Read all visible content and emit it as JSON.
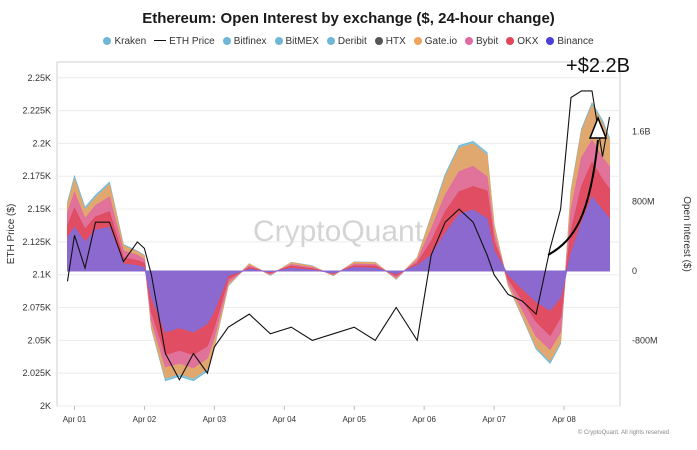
{
  "chart_data": {
    "type": "area",
    "title": "Ethereum: Open Interest by exchange ($, 24-hour change)",
    "ylabel_left": "ETH Price ($)",
    "ylabel_right": "Open Interest ($)",
    "y_left_ticks": [
      "2.25K",
      "2.225K",
      "2.2K",
      "2.175K",
      "2.15K",
      "2.125K",
      "2.1K",
      "2.075K",
      "2.05K",
      "2.025K",
      "2K"
    ],
    "y_left_lim": [
      2000,
      2262
    ],
    "y_right_ticks": [
      "1.6B",
      "800M",
      "0",
      "-800M"
    ],
    "y_right_values": [
      1600,
      800,
      0,
      -800
    ],
    "y_right_lim": [
      -1550,
      2400
    ],
    "x_ticks": [
      "Apr 01",
      "Apr 02",
      "Apr 03",
      "Apr 04",
      "Apr 05",
      "Apr 06",
      "Apr 07",
      "Apr 08"
    ],
    "x_lim": [
      -0.25,
      7.8
    ],
    "legend": [
      {
        "name": "Kraken",
        "color": "#6fb7d6",
        "marker": "dot"
      },
      {
        "name": "ETH Price",
        "color": "#111111",
        "marker": "line"
      },
      {
        "name": "Bitfinex",
        "color": "#6fb7d6",
        "marker": "dot"
      },
      {
        "name": "BitMEX",
        "color": "#6fb7d6",
        "marker": "dot"
      },
      {
        "name": "Deribit",
        "color": "#6fb7d6",
        "marker": "dot"
      },
      {
        "name": "HTX",
        "color": "#555555",
        "marker": "dot"
      },
      {
        "name": "Gate.io",
        "color": "#f0a35a",
        "marker": "dot"
      },
      {
        "name": "Bybit",
        "color": "#e06aa3",
        "marker": "dot"
      },
      {
        "name": "OKX",
        "color": "#e0485a",
        "marker": "dot"
      },
      {
        "name": "Binance",
        "color": "#4b3fd6",
        "marker": "dot"
      }
    ],
    "x": [
      -0.1,
      0.0,
      0.15,
      0.3,
      0.5,
      0.7,
      0.9,
      1.0,
      1.1,
      1.3,
      1.5,
      1.7,
      1.9,
      2.0,
      2.2,
      2.5,
      2.8,
      3.1,
      3.4,
      3.7,
      4.0,
      4.3,
      4.6,
      4.9,
      5.1,
      5.3,
      5.5,
      5.7,
      5.9,
      6.0,
      6.2,
      6.4,
      6.6,
      6.8,
      6.95,
      7.1,
      7.25,
      7.4,
      7.55,
      7.65
    ],
    "series": [
      {
        "name": "Binance",
        "color": "#7b6fe0",
        "values": [
          380,
          500,
          330,
          470,
          500,
          80,
          60,
          40,
          -300,
          -700,
          -650,
          -700,
          -600,
          -450,
          -50,
          20,
          -10,
          30,
          10,
          -20,
          40,
          30,
          -30,
          60,
          180,
          430,
          650,
          700,
          600,
          230,
          -40,
          -200,
          -350,
          -450,
          -300,
          200,
          550,
          850,
          700,
          600
        ]
      },
      {
        "name": "OKX",
        "color": "#e0485a",
        "values": [
          520,
          720,
          480,
          620,
          680,
          150,
          120,
          90,
          -470,
          -960,
          -910,
          -960,
          -860,
          -640,
          -90,
          40,
          -20,
          55,
          25,
          -30,
          60,
          55,
          -50,
          90,
          340,
          680,
          910,
          970,
          920,
          340,
          -90,
          -330,
          -580,
          -740,
          -530,
          460,
          970,
          1250,
          1050,
          940
        ]
      },
      {
        "name": "Bybit",
        "color": "#e06aa3",
        "values": [
          670,
          900,
          600,
          750,
          850,
          230,
          180,
          130,
          -570,
          -1100,
          -1060,
          -1110,
          -1000,
          -760,
          -130,
          60,
          -35,
          75,
          40,
          -40,
          80,
          75,
          -75,
          120,
          480,
          870,
          1140,
          1200,
          1080,
          430,
          -130,
          -440,
          -750,
          -900,
          -700,
          700,
          1300,
          1500,
          1300,
          1200
        ]
      },
      {
        "name": "Gate.io",
        "color": "#f0a35a",
        "values": [
          760,
          1050,
          700,
          840,
          990,
          290,
          220,
          170,
          -640,
          -1230,
          -1180,
          -1230,
          -1120,
          -860,
          -160,
          80,
          -45,
          95,
          55,
          -50,
          100,
          95,
          -90,
          150,
          610,
          1080,
          1410,
          1460,
          1330,
          520,
          -160,
          -510,
          -870,
          -1030,
          -810,
          900,
          1600,
          1900,
          1700,
          1500
        ]
      },
      {
        "name": "Deribit",
        "color": "#6fb7d6",
        "values": [
          790,
          1090,
          730,
          870,
          1020,
          305,
          230,
          180,
          -660,
          -1260,
          -1210,
          -1260,
          -1150,
          -880,
          -170,
          85,
          -50,
          100,
          60,
          -55,
          105,
          100,
          -95,
          155,
          630,
          1110,
          1440,
          1490,
          1360,
          535,
          -165,
          -525,
          -895,
          -1060,
          -835,
          930,
          1630,
          1930,
          1730,
          1530
        ]
      }
    ],
    "eth_price": [
      2095,
      2130,
      2105,
      2140,
      2140,
      2110,
      2125,
      2120,
      2100,
      2040,
      2020,
      2040,
      2025,
      2045,
      2060,
      2070,
      2055,
      2060,
      2050,
      2055,
      2060,
      2050,
      2075,
      2050,
      2115,
      2140,
      2150,
      2140,
      2115,
      2100,
      2085,
      2080,
      2070,
      2120,
      2150,
      2235,
      2240,
      2240,
      2190,
      2220
    ],
    "annotation": "+$2.2B",
    "watermark": "CryptoQuant",
    "grid": "horizontal, light",
    "copyright": "© CryptoQuant. All rights reserved"
  }
}
